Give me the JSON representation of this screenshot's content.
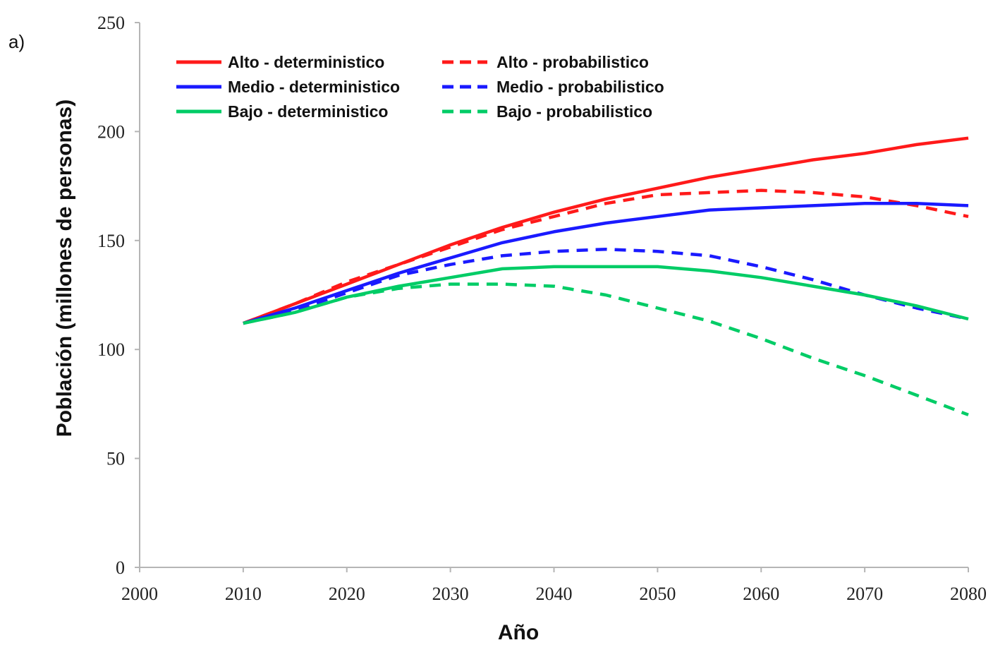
{
  "panel_label": "a)",
  "chart_data": {
    "type": "line",
    "xlabel": "Año",
    "ylabel": "Población (millones de personas)",
    "xlim": [
      2000,
      2080
    ],
    "ylim": [
      0,
      250
    ],
    "x_ticks": [
      "2000",
      "2010",
      "2020",
      "2030",
      "2040",
      "2050",
      "2060",
      "2070",
      "2080"
    ],
    "y_ticks": [
      "0",
      "50",
      "100",
      "150",
      "200",
      "250"
    ],
    "grid": false,
    "legend_position": "top-left",
    "series": [
      {
        "name": "Alto - deterministico",
        "color": "#ff1a1a",
        "dash": "solid",
        "x": [
          2010,
          2015,
          2020,
          2025,
          2030,
          2035,
          2040,
          2045,
          2050,
          2055,
          2060,
          2065,
          2070,
          2075,
          2080
        ],
        "y": [
          112,
          121,
          130,
          139,
          148,
          156,
          163,
          169,
          174,
          179,
          183,
          187,
          190,
          194,
          197
        ]
      },
      {
        "name": "Medio - deterministico",
        "color": "#1a1aff",
        "dash": "solid",
        "x": [
          2010,
          2015,
          2020,
          2025,
          2030,
          2035,
          2040,
          2045,
          2050,
          2055,
          2060,
          2065,
          2070,
          2075,
          2080
        ],
        "y": [
          112,
          119,
          127,
          135,
          142,
          149,
          154,
          158,
          161,
          164,
          165,
          166,
          167,
          167,
          166
        ]
      },
      {
        "name": "Bajo - deterministico",
        "color": "#00cc66",
        "dash": "solid",
        "x": [
          2010,
          2015,
          2020,
          2025,
          2030,
          2035,
          2040,
          2045,
          2050,
          2055,
          2060,
          2065,
          2070,
          2075,
          2080
        ],
        "y": [
          112,
          117,
          124,
          129,
          133,
          137,
          138,
          138,
          138,
          136,
          133,
          129,
          125,
          120,
          114
        ]
      },
      {
        "name": "Alto - probabilistico",
        "color": "#ff1a1a",
        "dash": "dashed",
        "x": [
          2010,
          2015,
          2020,
          2025,
          2030,
          2035,
          2040,
          2045,
          2050,
          2055,
          2060,
          2065,
          2070,
          2075,
          2080
        ],
        "y": [
          112,
          121,
          131,
          139,
          147,
          155,
          161,
          167,
          171,
          172,
          173,
          172,
          170,
          166,
          161
        ]
      },
      {
        "name": "Medio - probabilistico",
        "color": "#1a1aff",
        "dash": "dashed",
        "x": [
          2010,
          2015,
          2020,
          2025,
          2030,
          2035,
          2040,
          2045,
          2050,
          2055,
          2060,
          2065,
          2070,
          2075,
          2080
        ],
        "y": [
          112,
          118,
          126,
          134,
          139,
          143,
          145,
          146,
          145,
          143,
          138,
          132,
          125,
          119,
          114
        ]
      },
      {
        "name": "Bajo - probabilistico",
        "color": "#00cc66",
        "dash": "dashed",
        "x": [
          2010,
          2015,
          2020,
          2025,
          2030,
          2035,
          2040,
          2045,
          2050,
          2055,
          2060,
          2065,
          2070,
          2075,
          2080
        ],
        "y": [
          112,
          117,
          124,
          128,
          130,
          130,
          129,
          125,
          119,
          113,
          105,
          96,
          88,
          79,
          70
        ]
      }
    ]
  }
}
